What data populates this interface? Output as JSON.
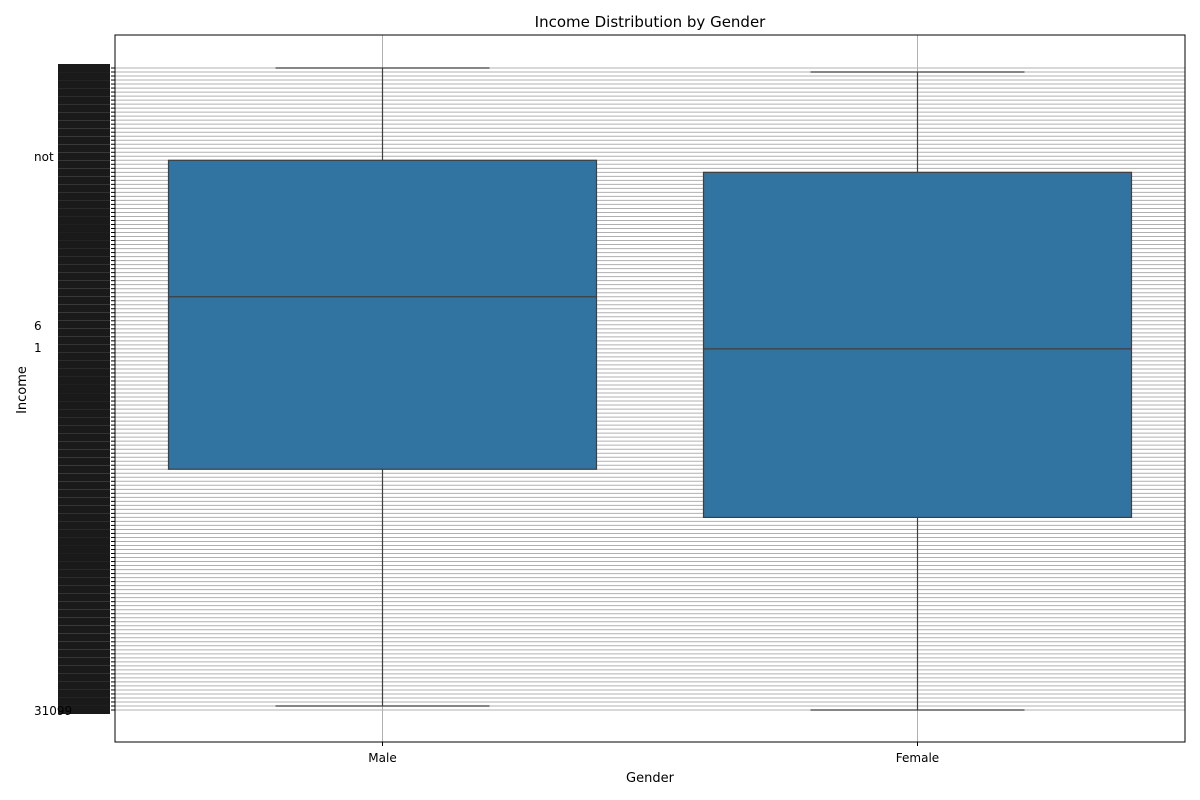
{
  "chart_data": {
    "type": "box",
    "title": "Income Distribution by Gender",
    "xlabel": "Gender",
    "ylabel": "Income",
    "categories": [
      "Male",
      "Female"
    ],
    "y_axis_kind": "categorical",
    "y_category_count": 160,
    "y_tick_labels_visible_fragment": [
      "not",
      "6",
      "1",
      "31099"
    ],
    "grid": true,
    "series": [
      {
        "category": "Male",
        "whisker_low": 1,
        "q1": 60,
        "median": 103,
        "q3": 137,
        "whisker_high": 160
      },
      {
        "category": "Female",
        "whisker_low": 0,
        "q1": 48,
        "median": 90,
        "q3": 134,
        "whisker_high": 159
      }
    ],
    "colors": {
      "box_fill": "#3274a1",
      "box_edge": "#3f3f3f",
      "grid": "#b0b0b0",
      "axes": "#000000"
    }
  }
}
